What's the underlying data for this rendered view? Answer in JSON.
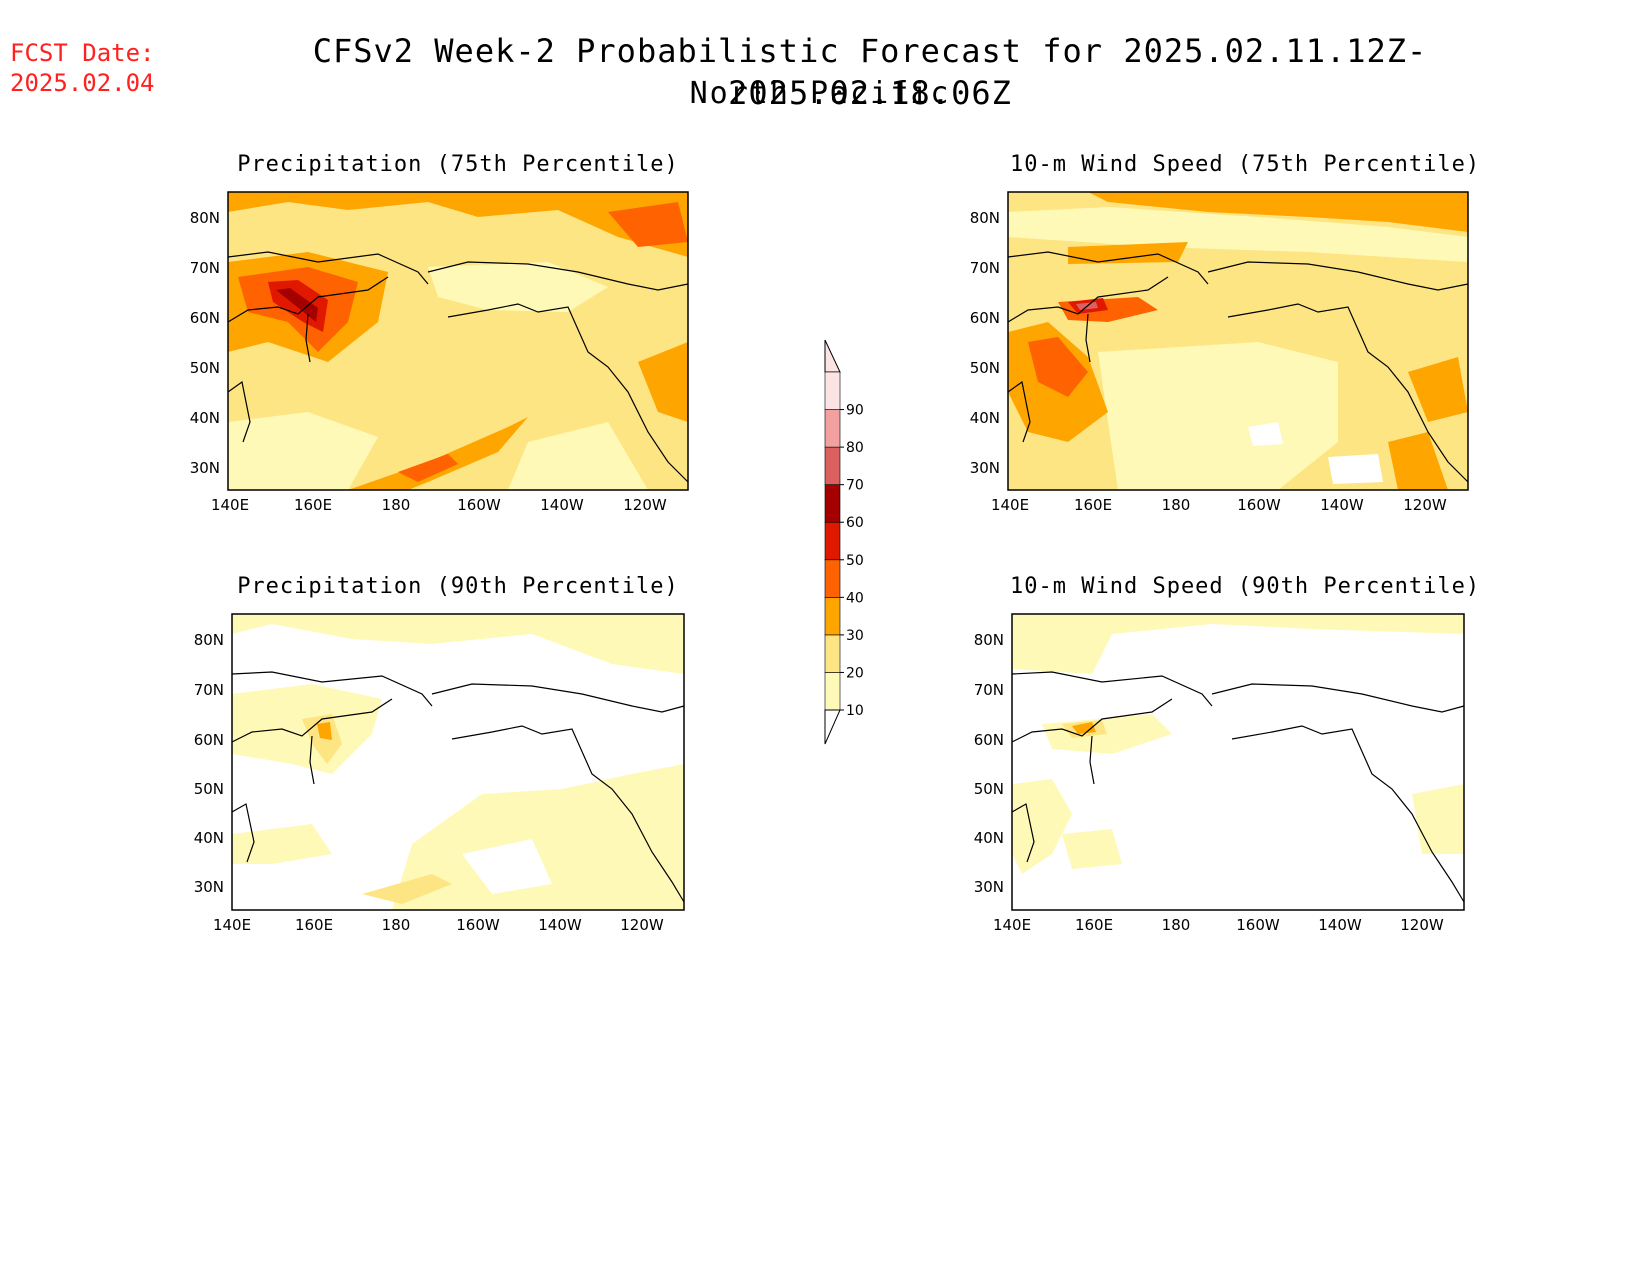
{
  "header": {
    "fcst_label": "FCST Date:",
    "fcst_date": "2025.02.04",
    "title": "CFSv2 Week-2 Probabilistic Forecast for 2025.02.11.12Z-2025.02.18.06Z",
    "region": "North Pacific"
  },
  "panels": [
    {
      "title": "Precipitation (75th Percentile)"
    },
    {
      "title": "10-m Wind Speed (75th Percentile)"
    },
    {
      "title": "Precipitation (90th Percentile)"
    },
    {
      "title": "10-m Wind Speed (90th Percentile)"
    }
  ],
  "axes": {
    "lat_ticks": [
      "80N",
      "70N",
      "60N",
      "50N",
      "40N",
      "30N"
    ],
    "lon_ticks": [
      "140E",
      "160E",
      "180",
      "160W",
      "140W",
      "120W"
    ]
  },
  "colorbar": {
    "levels": [
      "10",
      "20",
      "30",
      "40",
      "50",
      "60",
      "70",
      "80",
      "90"
    ],
    "colors": [
      "#fff9b8",
      "#fde584",
      "#ffa500",
      "#ff6200",
      "#e01800",
      "#a50000",
      "#dd6060",
      "#f3a0a0",
      "#fde4e4"
    ]
  },
  "colors": {
    "c10": "#fff9b8",
    "c20": "#fde584",
    "c30": "#ffa500",
    "c40": "#ff6200",
    "c50": "#e01800",
    "c60": "#a50000",
    "c70": "#dd6060",
    "fcst_text": "#ff2020"
  }
}
